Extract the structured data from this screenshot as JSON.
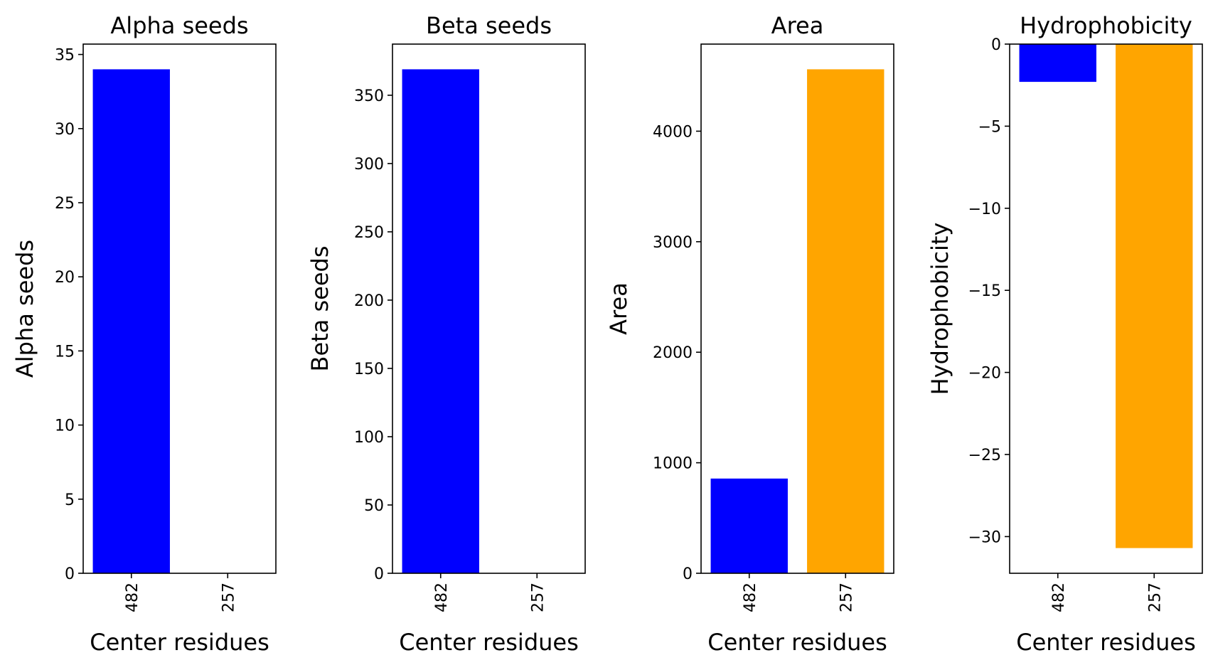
{
  "figure": {
    "colors": {
      "blue": "#0000ff",
      "orange": "#ffa500",
      "frame": "#000000"
    }
  },
  "chart_data": [
    {
      "type": "bar",
      "title": "Alpha seeds",
      "xlabel": "Center residues",
      "ylabel": "Alpha seeds",
      "categories": [
        "482",
        "257"
      ],
      "values": [
        34,
        0
      ],
      "colors": [
        "#0000ff",
        "#ffa500"
      ],
      "ylim": [
        0,
        35.7
      ],
      "yticks": [
        0,
        5,
        10,
        15,
        20,
        25,
        30,
        35
      ],
      "ytick_labels": [
        "0",
        "5",
        "10",
        "15",
        "20",
        "25",
        "30",
        "35"
      ],
      "xtick_rotation": "vertical",
      "grid": false,
      "legend": "none"
    },
    {
      "type": "bar",
      "title": "Beta seeds",
      "xlabel": "Center residues",
      "ylabel": "Beta seeds",
      "categories": [
        "482",
        "257"
      ],
      "values": [
        369,
        0
      ],
      "colors": [
        "#0000ff",
        "#ffa500"
      ],
      "ylim": [
        0,
        387.45
      ],
      "yticks": [
        0,
        50,
        100,
        150,
        200,
        250,
        300,
        350
      ],
      "ytick_labels": [
        "0",
        "50",
        "100",
        "150",
        "200",
        "250",
        "300",
        "350"
      ],
      "xtick_rotation": "vertical",
      "grid": false,
      "legend": "none"
    },
    {
      "type": "bar",
      "title": "Area",
      "xlabel": "Center residues",
      "ylabel": "Area",
      "categories": [
        "482",
        "257"
      ],
      "values": [
        857,
        4560
      ],
      "colors": [
        "#0000ff",
        "#ffa500"
      ],
      "ylim": [
        0,
        4788
      ],
      "yticks": [
        0,
        1000,
        2000,
        3000,
        4000
      ],
      "ytick_labels": [
        "0",
        "1000",
        "2000",
        "3000",
        "4000"
      ],
      "xtick_rotation": "vertical",
      "grid": false,
      "legend": "none"
    },
    {
      "type": "bar",
      "title": "Hydrophobicity",
      "xlabel": "Center residues",
      "ylabel": "Hydrophobicity",
      "categories": [
        "482",
        "257"
      ],
      "values": [
        -2.3,
        -30.7
      ],
      "colors": [
        "#0000ff",
        "#ffa500"
      ],
      "ylim": [
        -32.235,
        0
      ],
      "yticks": [
        0,
        -5,
        -10,
        -15,
        -20,
        -25,
        -30
      ],
      "ytick_labels": [
        "0",
        "−5",
        "−10",
        "−15",
        "−20",
        "−25",
        "−30"
      ],
      "xtick_rotation": "vertical",
      "grid": false,
      "legend": "none"
    }
  ]
}
